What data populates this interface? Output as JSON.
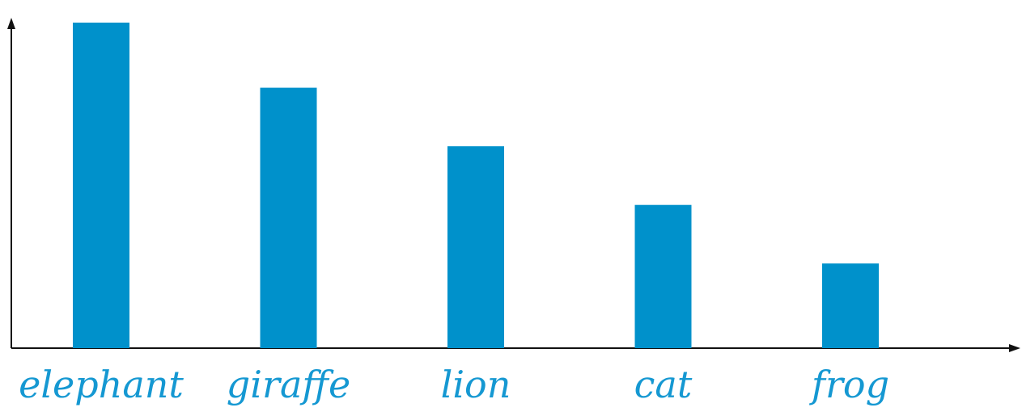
{
  "chart_data": {
    "type": "bar",
    "categories": [
      "elephant",
      "giraffe",
      "lion",
      "cat",
      "frog"
    ],
    "values": [
      10,
      8,
      6.2,
      4.4,
      2.6
    ],
    "ylim": [
      0,
      10.6
    ],
    "grid": false,
    "bar_color": "#0091cb",
    "label_color": "#1598d2"
  }
}
